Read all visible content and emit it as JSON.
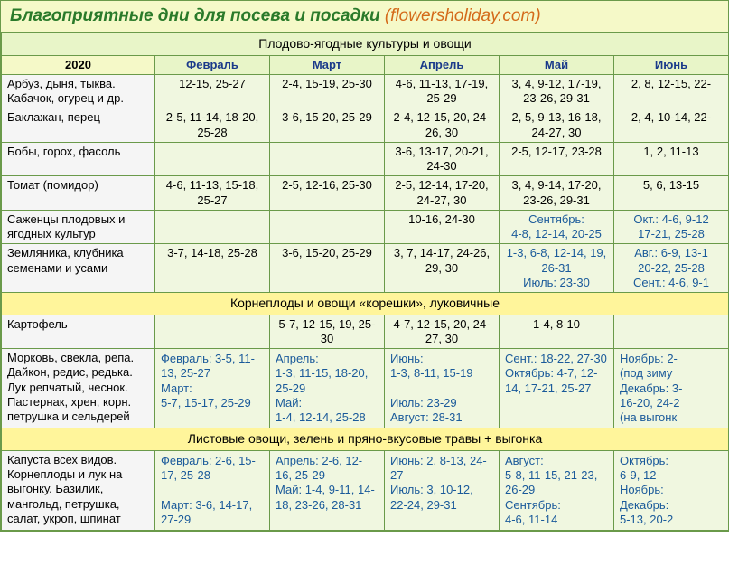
{
  "title_main": "Благоприятные дни для посева и посадки",
  "title_site": "(flowersholiday.com)",
  "year": "2020",
  "months": [
    "Февраль",
    "Март",
    "Апрель",
    "Май",
    "Июнь"
  ],
  "section1": {
    "header": "Плодово-ягодные культуры и овощи",
    "rows": [
      {
        "label": "Арбуз, дыня, тыква. Кабачок, огурец и др.",
        "cells": [
          "12-15, 25-27",
          "2-4, 15-19, 25-30",
          "4-6, 11-13, 17-19, 25-29",
          "3, 4, 9-12, 17-19, 23-26, 29-31",
          "2, 8, 12-15, 22-"
        ]
      },
      {
        "label": "Баклажан, перец",
        "cells": [
          "2-5, 11-14, 18-20, 25-28",
          "3-6, 15-20, 25-29",
          "2-4, 12-15, 20, 24-26, 30",
          "2, 5, 9-13, 16-18, 24-27, 30",
          "2, 4, 10-14, 22-"
        ]
      },
      {
        "label": "Бобы, горох, фасоль",
        "cells": [
          "",
          "",
          "3-6, 13-17, 20-21, 24-30",
          "2-5, 12-17, 23-28",
          "1, 2, 11-13"
        ]
      },
      {
        "label": "Томат (помидор)",
        "cells": [
          "4-6, 11-13, 15-18, 25-27",
          "2-5, 12-16, 25-30",
          "2-5, 12-14, 17-20, 24-27, 30",
          "3, 4, 9-14, 17-20, 23-26, 29-31",
          "5, 6, 13-15"
        ]
      },
      {
        "label": "Саженцы плодовых и ягодных культур",
        "cells": [
          "",
          "",
          "10-16, 24-30",
          "Сентябрь:\n4-8, 12-14, 20-25",
          "Окт.: 4-6, 9-12\n17-21, 25-28"
        ]
      },
      {
        "label": "Земляника, клубника семенами и усами",
        "cells": [
          "3-7, 14-18, 25-28",
          "3-6, 15-20, 25-29",
          "3, 7, 14-17, 24-26, 29, 30",
          "1-3, 6-8, 12-14, 19, 26-31\nИюль: 23-30",
          "Авг.: 6-9, 13-1\n20-22, 25-28\nСент.: 4-6, 9-1"
        ]
      }
    ]
  },
  "section2": {
    "header": "Корнеплоды и овощи «корешки», луковичные",
    "rows": [
      {
        "label": "Картофель",
        "cells": [
          "",
          "5-7, 12-15, 19, 25-30",
          "4-7, 12-15, 20, 24-27, 30",
          "1-4, 8-10",
          ""
        ]
      },
      {
        "label": "Морковь, свекла, репа. Дайкон, редис, редька. Лук репчатый, чеснок. Пастернак, хрен, корн. петрушка и сельдерей",
        "cells": [
          "Февраль: 3-5, 11-13, 25-27\nМарт:\n5-7, 15-17, 25-29",
          "Апрель:\n1-3, 11-15, 18-20, 25-29\nМай:\n1-4, 12-14, 25-28",
          "Июнь:\n1-3, 8-11, 15-19\n\nИюль: 23-29\nАвгуст: 28-31",
          "Сент.: 18-22, 27-30\nОктябрь: 4-7, 12-14, 17-21, 25-27",
          "Ноябрь: 2-\n(под зиму\nДекабрь: 3-\n16-20, 24-2\n(на выгонк"
        ]
      }
    ]
  },
  "section3": {
    "header": "Листовые овощи, зелень и пряно-вкусовые травы + выгонка",
    "rows": [
      {
        "label": "Капуста всех видов. Корнеплоды и лук на выгонку. Базилик, мангольд, петрушка, салат, укроп, шпинат",
        "cells": [
          "Февраль: 2-6, 15-17, 25-28\n\nМарт: 3-6, 14-17, 27-29",
          "Апрель: 2-6, 12-16, 25-29\nМай: 1-4, 9-11, 14-18, 23-26, 28-31",
          "Июнь: 2, 8-13, 24-27\nИюль: 3, 10-12, 22-24, 29-31",
          "Август:\n5-8, 11-15, 21-23, 26-29\nСентябрь:\n4-6, 11-14",
          "Октябрь:\n6-9, 12-\nНоябрь:\nДекабрь:\n5-13, 20-2"
        ]
      }
    ]
  }
}
